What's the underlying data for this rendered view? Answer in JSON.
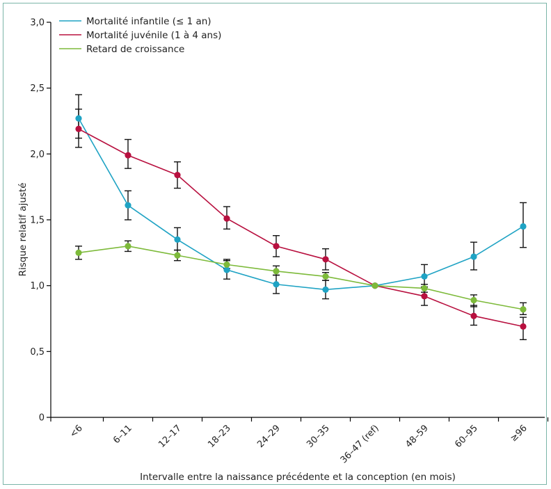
{
  "chart_data": {
    "type": "line",
    "xlabel": "Intervalle entre la naissance précédente et la conception (en mois)",
    "ylabel": "Risque relatif ajusté",
    "ylim": [
      0,
      3.0
    ],
    "yticks": [
      0,
      0.5,
      1.0,
      1.5,
      2.0,
      2.5,
      3.0
    ],
    "ytick_labels": [
      "0",
      "0,5",
      "1,0",
      "1,5",
      "2,0",
      "2,5",
      "3,0"
    ],
    "categories": [
      "<6",
      "6–11",
      "12–17",
      "18–23",
      "24–29",
      "30–35",
      "36–47 (ref)",
      "48–59",
      "60–95",
      "≥96"
    ],
    "legend_position": "top-left",
    "grid": false,
    "series": [
      {
        "name": "Mortalité infantile (≤ 1 an)",
        "color": "#1fa3c4",
        "values": [
          2.27,
          1.61,
          1.35,
          1.12,
          1.01,
          0.97,
          1.0,
          1.07,
          1.22,
          1.45
        ],
        "err_low": [
          2.12,
          1.5,
          1.27,
          1.05,
          0.94,
          0.9,
          1.0,
          0.99,
          1.12,
          1.29
        ],
        "err_high": [
          2.45,
          1.72,
          1.44,
          1.19,
          1.08,
          1.04,
          1.0,
          1.16,
          1.33,
          1.63
        ]
      },
      {
        "name": "Mortalité juvénile (1 à 4 ans)",
        "color": "#b8103f",
        "values": [
          2.19,
          1.99,
          1.84,
          1.51,
          1.3,
          1.2,
          1.0,
          0.92,
          0.77,
          0.69
        ],
        "err_low": [
          2.05,
          1.89,
          1.74,
          1.43,
          1.22,
          1.12,
          1.0,
          0.85,
          0.7,
          0.59
        ],
        "err_high": [
          2.34,
          2.11,
          1.94,
          1.6,
          1.38,
          1.28,
          1.0,
          0.99,
          0.85,
          0.76
        ]
      },
      {
        "name": "Retard de croissance",
        "color": "#7dba3a",
        "values": [
          1.25,
          1.3,
          1.23,
          1.16,
          1.11,
          1.07,
          1.0,
          0.98,
          0.89,
          0.82
        ],
        "err_low": [
          1.2,
          1.26,
          1.19,
          1.13,
          1.08,
          1.04,
          1.0,
          0.95,
          0.84,
          0.78
        ],
        "err_high": [
          1.3,
          1.34,
          1.27,
          1.2,
          1.15,
          1.1,
          1.0,
          1.01,
          0.93,
          0.87
        ]
      }
    ]
  }
}
